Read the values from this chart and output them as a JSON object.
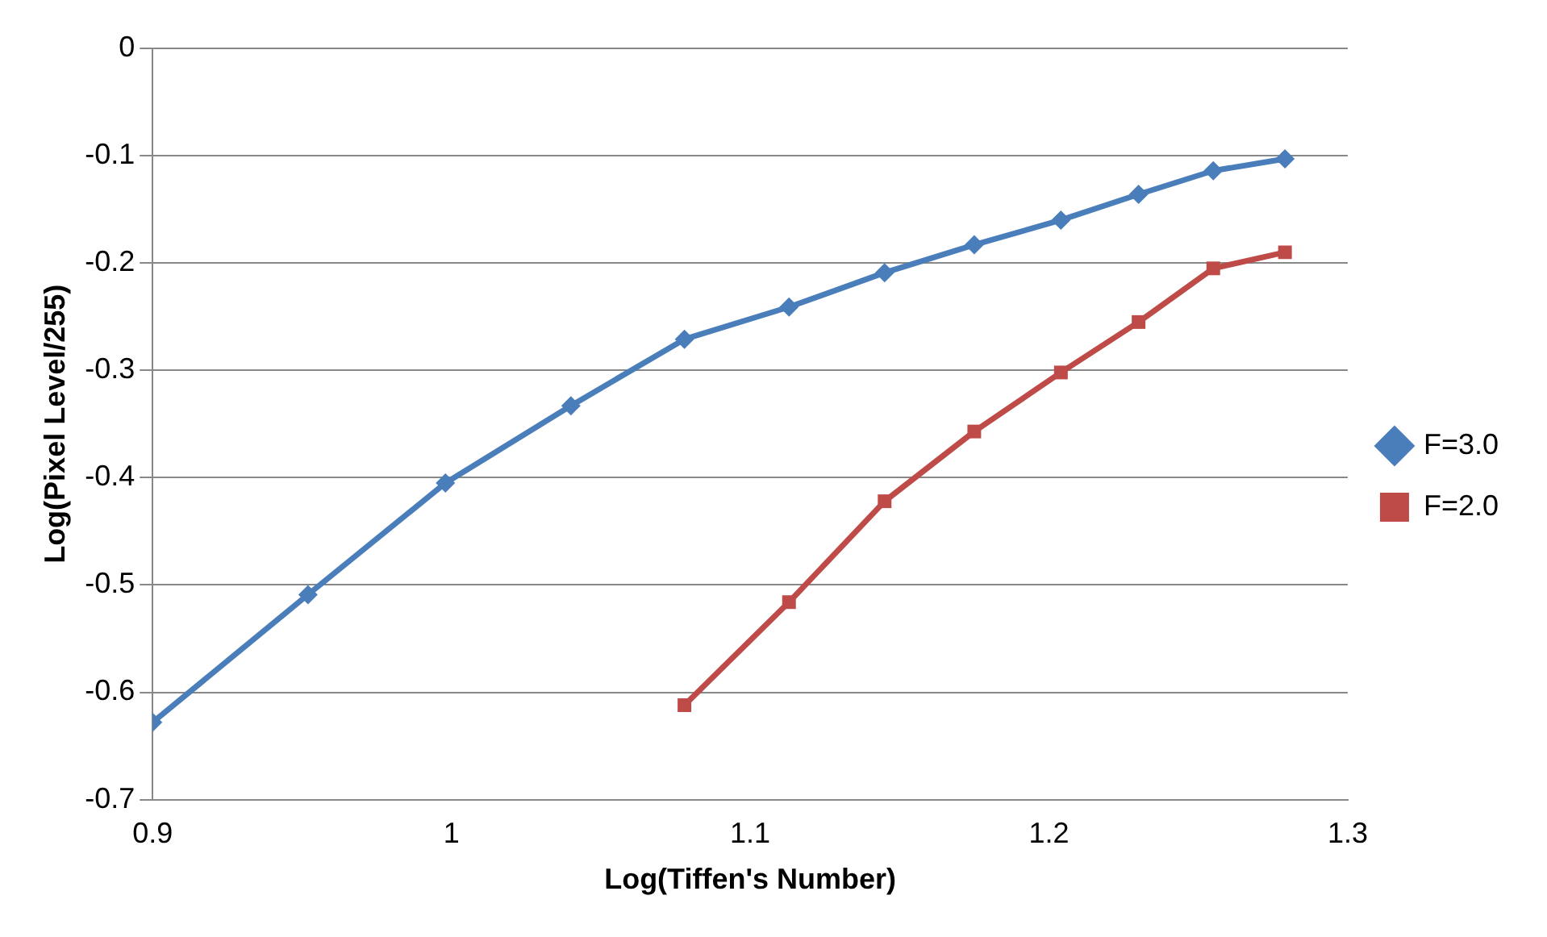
{
  "chart_data": {
    "type": "line",
    "xlabel": "Log(Tiffen's Number)",
    "ylabel": "Log(Pixel Level/255)",
    "xlim": [
      0.9,
      1.3
    ],
    "xticks": [
      0.9,
      1,
      1.1,
      1.2,
      1.3
    ],
    "ylim": [
      -0.7,
      0
    ],
    "yticks": [
      0,
      -0.1,
      -0.2,
      -0.3,
      -0.4,
      -0.5,
      -0.6,
      -0.7
    ],
    "grid": "y",
    "legend": "right",
    "line_style": "solid",
    "series": [
      {
        "name": "F=3.0",
        "color": "#4a7ebb",
        "marker": "diamond",
        "x": [
          0.9,
          0.952,
          0.998,
          1.04,
          1.078,
          1.113,
          1.145,
          1.175,
          1.204,
          1.23,
          1.255,
          1.279
        ],
        "values": [
          -0.628,
          -0.509,
          -0.405,
          -0.333,
          -0.271,
          -0.241,
          -0.209,
          -0.183,
          -0.16,
          -0.136,
          -0.114,
          -0.103
        ]
      },
      {
        "name": "F=2.0",
        "color": "#be4b48",
        "marker": "square",
        "x": [
          1.078,
          1.113,
          1.145,
          1.175,
          1.204,
          1.23,
          1.255,
          1.279
        ],
        "values": [
          -0.612,
          -0.516,
          -0.422,
          -0.357,
          -0.302,
          -0.255,
          -0.205,
          -0.19
        ]
      }
    ]
  }
}
